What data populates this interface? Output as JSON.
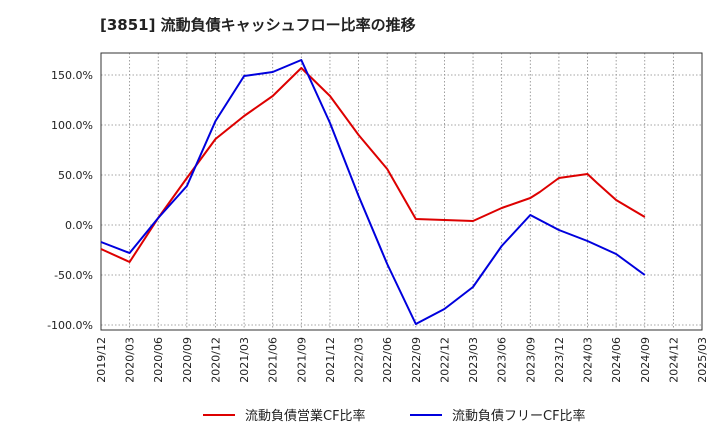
{
  "chart_data": {
    "type": "line",
    "title": "[3851]  流動負債キャッシュフロー比率の推移",
    "xlabel": "",
    "ylabel": "",
    "ylim": [
      -105,
      172
    ],
    "y_ticks": [
      -100,
      -50,
      0,
      50,
      100,
      150
    ],
    "y_tick_labels": [
      "-100.0%",
      "-50.0%",
      "0.0%",
      "50.0%",
      "100.0%",
      "150.0%"
    ],
    "x_tick_labels": [
      "2019/12",
      "2020/03",
      "2020/06",
      "2020/09",
      "2020/12",
      "2021/03",
      "2021/06",
      "2021/09",
      "2021/12",
      "2022/03",
      "2022/06",
      "2022/09",
      "2022/12",
      "2023/03",
      "2023/06",
      "2023/09",
      "2023/12",
      "2024/03",
      "2024/06",
      "2024/09",
      "2024/12",
      "2025/03"
    ],
    "grid": true,
    "legend_position": "bottom",
    "series": [
      {
        "name": "流動負債営業CF比率",
        "color": "#dd0000",
        "points": [
          [
            "2019/12",
            -24
          ],
          [
            "2020/03",
            -37
          ],
          [
            "2020/06",
            7
          ],
          [
            "2020/09",
            47
          ],
          [
            "2020/12",
            86
          ],
          [
            "2021/03",
            109
          ],
          [
            "2021/06",
            129
          ],
          [
            "2021/09",
            157
          ],
          [
            "2021/12",
            129
          ],
          [
            "2022/03",
            90
          ],
          [
            "2022/06",
            56
          ],
          [
            "2022/09",
            6
          ],
          [
            "2022/12",
            5
          ],
          [
            "2023/03",
            4
          ],
          [
            "2023/06",
            17
          ],
          [
            "2023/09",
            27
          ],
          [
            "2023/10",
            33
          ],
          [
            "2023/12",
            47
          ],
          [
            "2024/03",
            51
          ],
          [
            "2024/04",
            42
          ],
          [
            "2024/06",
            25
          ],
          [
            "2024/09",
            8
          ]
        ]
      },
      {
        "name": "流動負債フリーCF比率",
        "color": "#0000dd",
        "points": [
          [
            "2019/12",
            -17
          ],
          [
            "2020/03",
            -28
          ],
          [
            "2020/06",
            7
          ],
          [
            "2020/09",
            39
          ],
          [
            "2020/12",
            104
          ],
          [
            "2021/03",
            149
          ],
          [
            "2021/06",
            153
          ],
          [
            "2021/09",
            165
          ],
          [
            "2021/12",
            102
          ],
          [
            "2022/03",
            29
          ],
          [
            "2022/06",
            -39
          ],
          [
            "2022/09",
            -99
          ],
          [
            "2022/12",
            -84
          ],
          [
            "2023/03",
            -62
          ],
          [
            "2023/06",
            -21
          ],
          [
            "2023/09",
            10
          ],
          [
            "2023/10",
            5
          ],
          [
            "2023/12",
            -5
          ],
          [
            "2024/03",
            -16
          ],
          [
            "2024/06",
            -29
          ],
          [
            "2024/09",
            -50
          ]
        ]
      }
    ]
  }
}
